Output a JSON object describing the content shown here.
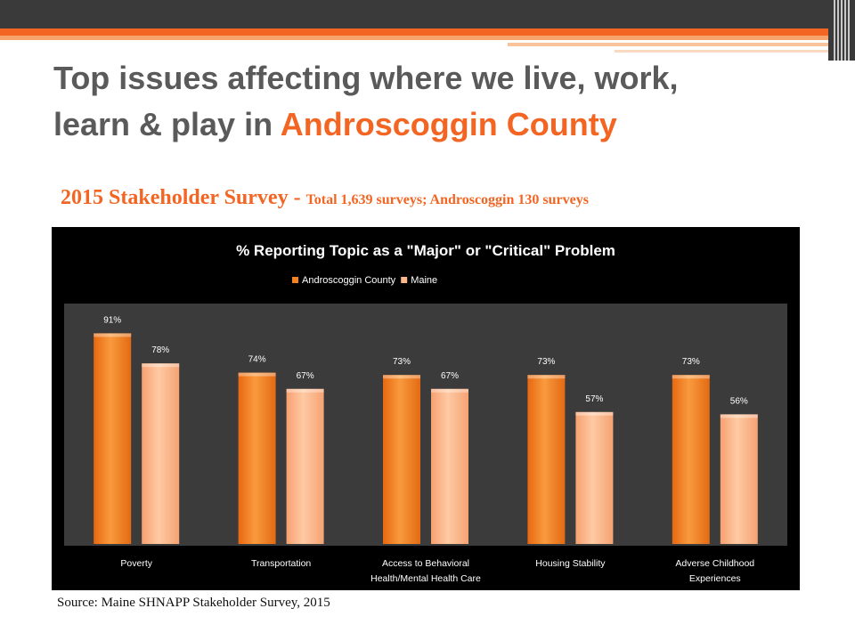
{
  "slide": {
    "title_line1": "Top issues affecting where we live, work,",
    "title_line2_prefix": "learn & play in ",
    "title_line2_accent": "Androscoggin County",
    "subtitle_main": "2015 Stakeholder Survey - ",
    "subtitle_small": "Total 1,639 surveys; Androscoggin 130 surveys",
    "source": "Source: Maine SHNAPP Stakeholder Survey, 2015"
  },
  "chart_data": {
    "type": "bar",
    "title": "% Reporting Topic as a \"Major\" or \"Critical\" Problem",
    "categories": [
      [
        "Poverty"
      ],
      [
        "Transportation"
      ],
      [
        "Access to Behavioral",
        "Health/Mental Health Care"
      ],
      [
        "Housing Stability"
      ],
      [
        "Adverse Childhood",
        "Experiences"
      ]
    ],
    "series": [
      {
        "name": "Androscoggin County",
        "values": [
          91,
          74,
          73,
          73,
          73
        ],
        "labels": [
          "91%",
          "74%",
          "73%",
          "73%",
          "73%"
        ],
        "color": "#f58220"
      },
      {
        "name": "Maine",
        "values": [
          78,
          67,
          67,
          57,
          56
        ],
        "labels": [
          "78%",
          "67%",
          "67%",
          "57%",
          "56%"
        ],
        "color": "#fbb88a"
      }
    ],
    "ylim": [
      0,
      100
    ],
    "legend": "top",
    "grid": false
  }
}
